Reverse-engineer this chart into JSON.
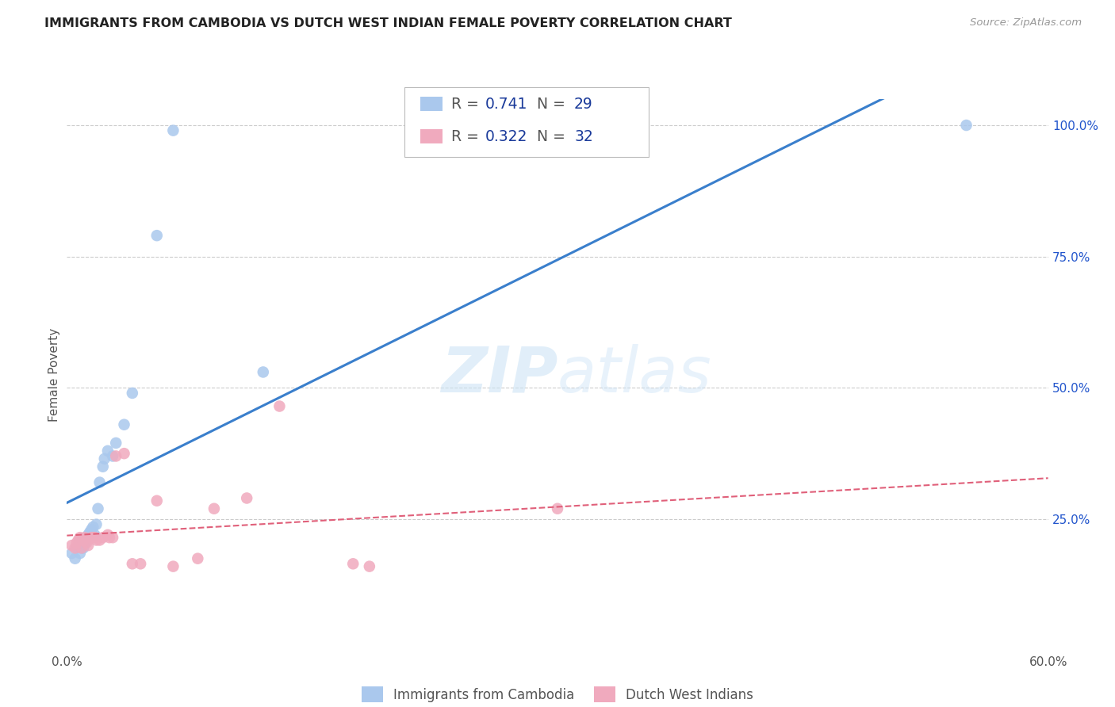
{
  "title": "IMMIGRANTS FROM CAMBODIA VS DUTCH WEST INDIAN FEMALE POVERTY CORRELATION CHART",
  "source": "Source: ZipAtlas.com",
  "ylabel": "Female Poverty",
  "xlim": [
    0.0,
    0.6
  ],
  "ylim": [
    0.0,
    1.05
  ],
  "grid_color": "#cccccc",
  "background_color": "#ffffff",
  "watermark_zip": "ZIP",
  "watermark_atlas": "atlas",
  "legend_R1": "0.741",
  "legend_N1": "29",
  "legend_R2": "0.322",
  "legend_N2": "32",
  "series1_color": "#aac8ed",
  "series2_color": "#f0aabe",
  "line1_color": "#3a7fcc",
  "line2_color": "#e0607a",
  "series1_label": "Immigrants from Cambodia",
  "series2_label": "Dutch West Indians",
  "legend_text_color": "#1a3a9a",
  "legend_gray": "#555555",
  "cambodia_x": [
    0.003,
    0.005,
    0.006,
    0.007,
    0.008,
    0.008,
    0.009,
    0.01,
    0.011,
    0.012,
    0.013,
    0.014,
    0.015,
    0.016,
    0.017,
    0.018,
    0.019,
    0.02,
    0.022,
    0.023,
    0.025,
    0.028,
    0.03,
    0.035,
    0.04,
    0.055,
    0.065,
    0.12,
    0.55
  ],
  "cambodia_y": [
    0.185,
    0.175,
    0.195,
    0.2,
    0.185,
    0.21,
    0.195,
    0.195,
    0.205,
    0.215,
    0.22,
    0.225,
    0.23,
    0.235,
    0.22,
    0.24,
    0.27,
    0.32,
    0.35,
    0.365,
    0.38,
    0.37,
    0.395,
    0.43,
    0.49,
    0.79,
    0.99,
    0.53,
    1.0
  ],
  "dutch_x": [
    0.003,
    0.005,
    0.006,
    0.007,
    0.008,
    0.009,
    0.01,
    0.011,
    0.012,
    0.013,
    0.015,
    0.016,
    0.017,
    0.018,
    0.02,
    0.022,
    0.025,
    0.026,
    0.028,
    0.03,
    0.035,
    0.04,
    0.045,
    0.055,
    0.065,
    0.08,
    0.09,
    0.11,
    0.13,
    0.175,
    0.185,
    0.3
  ],
  "dutch_y": [
    0.2,
    0.195,
    0.205,
    0.21,
    0.215,
    0.195,
    0.21,
    0.215,
    0.205,
    0.2,
    0.215,
    0.215,
    0.215,
    0.21,
    0.21,
    0.215,
    0.22,
    0.215,
    0.215,
    0.37,
    0.375,
    0.165,
    0.165,
    0.285,
    0.16,
    0.175,
    0.27,
    0.29,
    0.465,
    0.165,
    0.16,
    0.27
  ]
}
